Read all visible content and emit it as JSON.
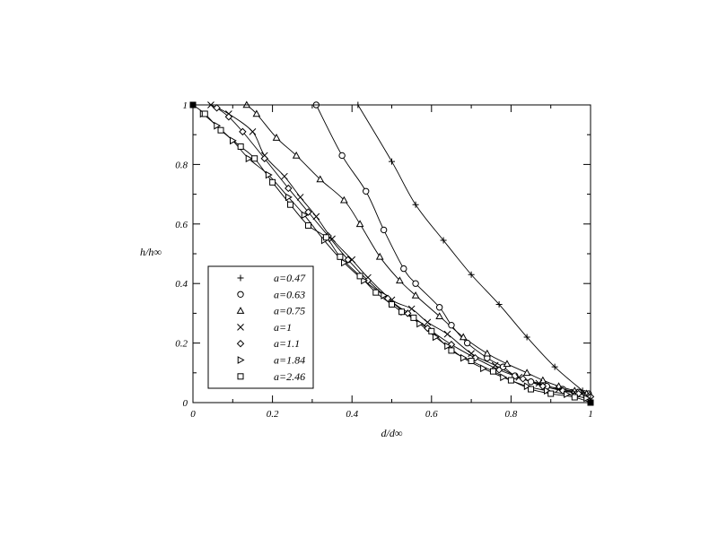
{
  "chart_data": {
    "type": "line",
    "xlabel": "d/d∞",
    "ylabel": "h/h∞",
    "xlim": [
      0,
      1
    ],
    "ylim": [
      0,
      1
    ],
    "x_ticks": [
      "0",
      "0.2",
      "0.4",
      "0.6",
      "0.8",
      "1"
    ],
    "y_ticks": [
      "0",
      "0.2",
      "0.4",
      "0.6",
      "0.8",
      "1"
    ],
    "legend_position": "bottom-left",
    "grid": false,
    "series": [
      {
        "name": "a=0.47",
        "marker": "plus",
        "points": [
          [
            0.415,
            1.0
          ],
          [
            0.5,
            0.81
          ],
          [
            0.56,
            0.665
          ],
          [
            0.63,
            0.545
          ],
          [
            0.7,
            0.43
          ],
          [
            0.77,
            0.33
          ],
          [
            0.84,
            0.22
          ],
          [
            0.91,
            0.12
          ],
          [
            0.98,
            0.04
          ],
          [
            1.0,
            0.02
          ]
        ]
      },
      {
        "name": "a=0.63",
        "marker": "circle",
        "points": [
          [
            0.31,
            1.0
          ],
          [
            0.375,
            0.83
          ],
          [
            0.435,
            0.71
          ],
          [
            0.48,
            0.58
          ],
          [
            0.53,
            0.45
          ],
          [
            0.56,
            0.4
          ],
          [
            0.62,
            0.32
          ],
          [
            0.65,
            0.26
          ],
          [
            0.69,
            0.2
          ],
          [
            0.74,
            0.15
          ],
          [
            0.78,
            0.12
          ],
          [
            0.81,
            0.09
          ],
          [
            0.85,
            0.07
          ],
          [
            0.89,
            0.055
          ],
          [
            0.93,
            0.045
          ],
          [
            0.97,
            0.035
          ],
          [
            0.995,
            0.03
          ]
        ]
      },
      {
        "name": "a=0.75",
        "marker": "triangle",
        "points": [
          [
            0.135,
            1.0
          ],
          [
            0.16,
            0.97
          ],
          [
            0.21,
            0.89
          ],
          [
            0.26,
            0.83
          ],
          [
            0.32,
            0.75
          ],
          [
            0.38,
            0.68
          ],
          [
            0.42,
            0.6
          ],
          [
            0.47,
            0.49
          ],
          [
            0.52,
            0.41
          ],
          [
            0.56,
            0.36
          ],
          [
            0.62,
            0.29
          ],
          [
            0.68,
            0.22
          ],
          [
            0.74,
            0.165
          ],
          [
            0.79,
            0.13
          ],
          [
            0.84,
            0.1
          ],
          [
            0.88,
            0.075
          ],
          [
            0.92,
            0.055
          ],
          [
            0.96,
            0.04
          ],
          [
            0.99,
            0.03
          ]
        ]
      },
      {
        "name": "a=1",
        "marker": "cross",
        "points": [
          [
            0.045,
            1.0
          ],
          [
            0.09,
            0.97
          ],
          [
            0.15,
            0.91
          ],
          [
            0.18,
            0.83
          ],
          [
            0.23,
            0.76
          ],
          [
            0.27,
            0.69
          ],
          [
            0.31,
            0.625
          ],
          [
            0.35,
            0.55
          ],
          [
            0.4,
            0.48
          ],
          [
            0.44,
            0.42
          ],
          [
            0.5,
            0.345
          ],
          [
            0.55,
            0.315
          ],
          [
            0.59,
            0.27
          ],
          [
            0.64,
            0.23
          ],
          [
            0.7,
            0.165
          ],
          [
            0.76,
            0.125
          ],
          [
            0.82,
            0.085
          ],
          [
            0.87,
            0.065
          ],
          [
            0.92,
            0.045
          ],
          [
            0.96,
            0.035
          ],
          [
            0.99,
            0.025
          ]
        ]
      },
      {
        "name": "a=1.1",
        "marker": "diamond",
        "points": [
          [
            0.06,
            0.99
          ],
          [
            0.09,
            0.96
          ],
          [
            0.125,
            0.91
          ],
          [
            0.18,
            0.82
          ],
          [
            0.24,
            0.72
          ],
          [
            0.29,
            0.64
          ],
          [
            0.34,
            0.56
          ],
          [
            0.39,
            0.48
          ],
          [
            0.44,
            0.41
          ],
          [
            0.49,
            0.35
          ],
          [
            0.54,
            0.3
          ],
          [
            0.59,
            0.25
          ],
          [
            0.65,
            0.195
          ],
          [
            0.71,
            0.15
          ],
          [
            0.77,
            0.11
          ],
          [
            0.83,
            0.08
          ],
          [
            0.88,
            0.055
          ],
          [
            0.93,
            0.04
          ],
          [
            0.97,
            0.03
          ],
          [
            1.0,
            0.02
          ]
        ]
      },
      {
        "name": "a=1.84",
        "marker": "triangle-right",
        "points": [
          [
            0.025,
            0.97
          ],
          [
            0.06,
            0.93
          ],
          [
            0.1,
            0.88
          ],
          [
            0.14,
            0.82
          ],
          [
            0.19,
            0.765
          ],
          [
            0.24,
            0.69
          ],
          [
            0.28,
            0.63
          ],
          [
            0.33,
            0.545
          ],
          [
            0.38,
            0.47
          ],
          [
            0.43,
            0.41
          ],
          [
            0.48,
            0.36
          ],
          [
            0.53,
            0.305
          ],
          [
            0.57,
            0.265
          ],
          [
            0.61,
            0.22
          ],
          [
            0.64,
            0.19
          ],
          [
            0.68,
            0.15
          ],
          [
            0.73,
            0.115
          ],
          [
            0.78,
            0.085
          ],
          [
            0.84,
            0.055
          ],
          [
            0.89,
            0.04
          ],
          [
            0.94,
            0.028
          ],
          [
            0.99,
            0.015
          ]
        ]
      },
      {
        "name": "a=2.46",
        "marker": "square",
        "points": [
          [
            0.0,
            1.0
          ],
          [
            0.03,
            0.97
          ],
          [
            0.07,
            0.915
          ],
          [
            0.12,
            0.86
          ],
          [
            0.155,
            0.82
          ],
          [
            0.2,
            0.74
          ],
          [
            0.245,
            0.665
          ],
          [
            0.29,
            0.595
          ],
          [
            0.335,
            0.555
          ],
          [
            0.37,
            0.49
          ],
          [
            0.42,
            0.425
          ],
          [
            0.46,
            0.37
          ],
          [
            0.5,
            0.33
          ],
          [
            0.525,
            0.305
          ],
          [
            0.555,
            0.285
          ],
          [
            0.6,
            0.24
          ],
          [
            0.65,
            0.175
          ],
          [
            0.7,
            0.14
          ],
          [
            0.755,
            0.105
          ],
          [
            0.8,
            0.075
          ],
          [
            0.85,
            0.045
          ],
          [
            0.9,
            0.03
          ],
          [
            0.96,
            0.018
          ],
          [
            1.0,
            0.0
          ]
        ]
      }
    ]
  }
}
